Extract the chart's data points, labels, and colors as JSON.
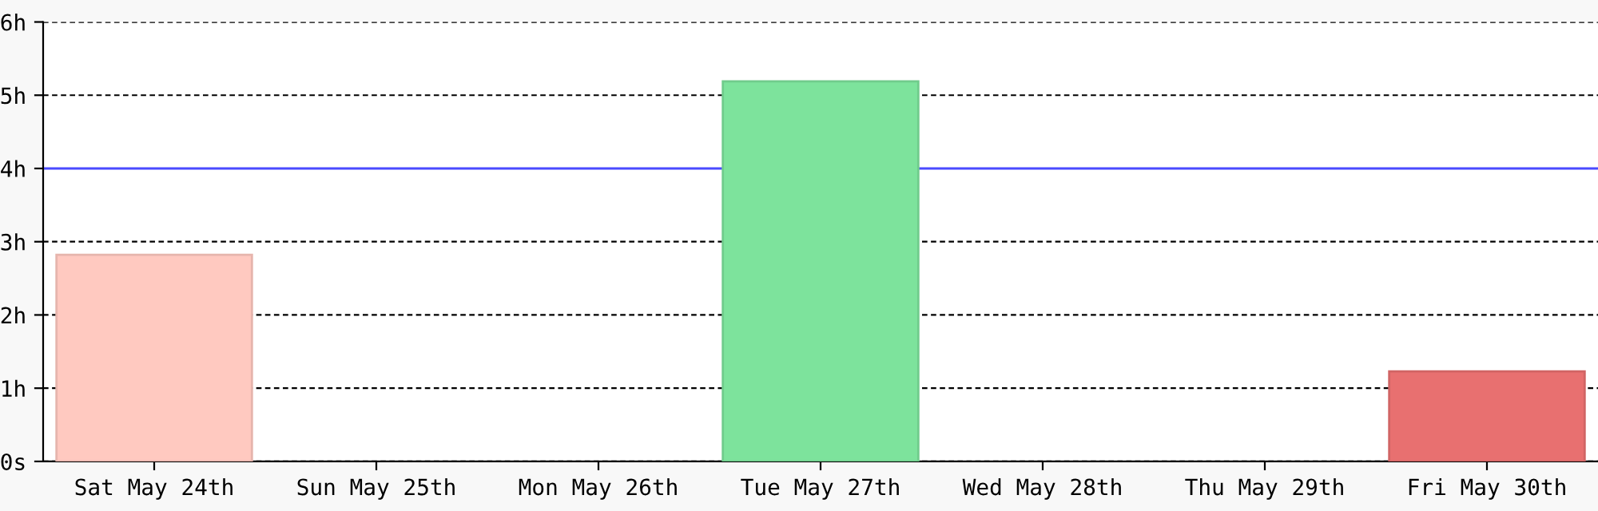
{
  "chart_data": {
    "type": "bar",
    "categories": [
      "Sat May 24th",
      "Sun May 25th",
      "Mon May 26th",
      "Tue May 27th",
      "Wed May 28th",
      "Thu May 29th",
      "Fri May 30th"
    ],
    "values": [
      2.82,
      null,
      null,
      5.19,
      null,
      null,
      1.23
    ],
    "colors": [
      "#ffc9c0",
      null,
      null,
      "#7de39c",
      null,
      null,
      "#e87070"
    ],
    "ylim": [
      0,
      6
    ],
    "yticks": [
      {
        "value": 0,
        "label": "0s"
      },
      {
        "value": 1,
        "label": "1h"
      },
      {
        "value": 2,
        "label": "2h"
      },
      {
        "value": 3,
        "label": "3h"
      },
      {
        "value": 4,
        "label": "4h"
      },
      {
        "value": 5,
        "label": "5h"
      },
      {
        "value": 6,
        "label": "6h"
      }
    ],
    "grid": "y",
    "ref_lines": [
      {
        "axis": "y",
        "value": 4,
        "color": "#4a4aff",
        "line_style": "solid"
      }
    ]
  }
}
